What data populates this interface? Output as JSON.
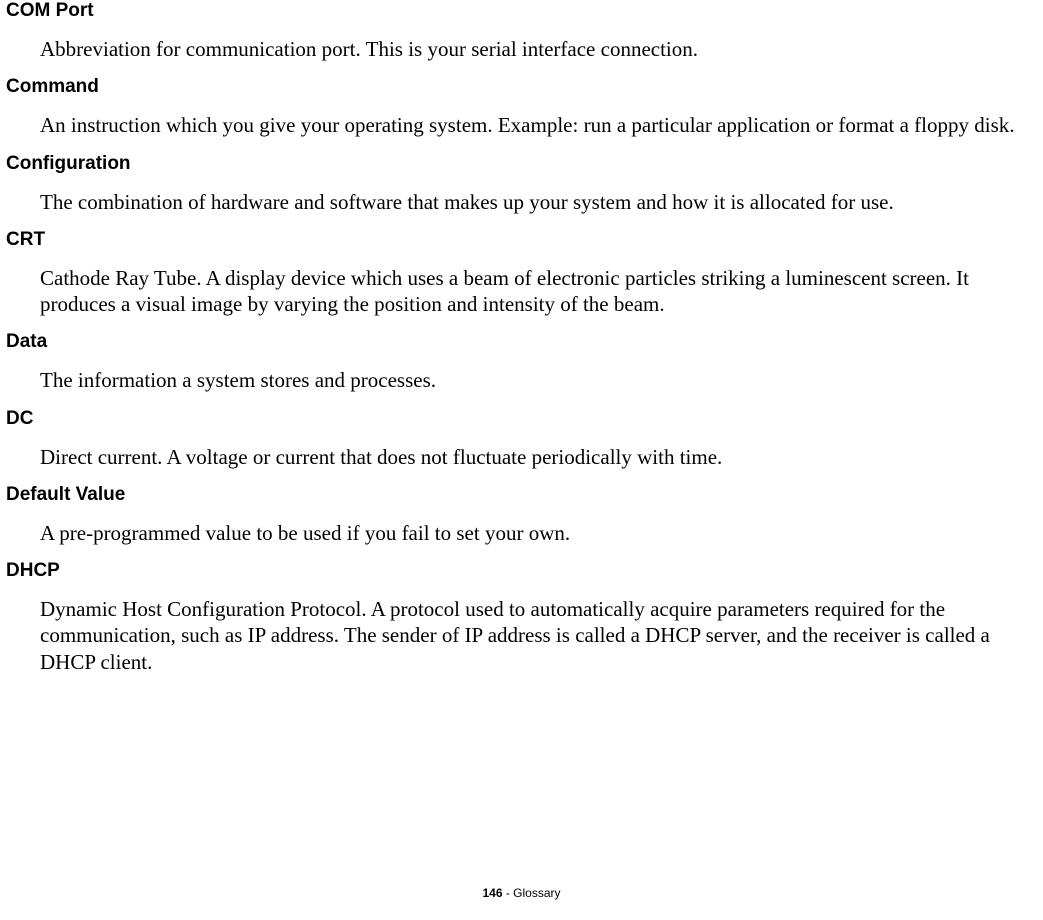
{
  "entries": [
    {
      "term": "COM Port",
      "definition": "Abbreviation for communication port. This is your serial interface connection."
    },
    {
      "term": "Command",
      "definition": "An instruction which you give your operating system. Example: run a particular application or format a floppy disk."
    },
    {
      "term": "Configuration",
      "definition": "The combination of hardware and software that makes up your system and how it is allocated for use."
    },
    {
      "term": "CRT",
      "definition": "Cathode Ray Tube. A display device which uses a beam of electronic particles striking a luminescent screen. It produces a visual image by varying the position and intensity of the beam."
    },
    {
      "term": "Data",
      "definition": "The information a system stores and processes."
    },
    {
      "term": "DC",
      "definition": "Direct current. A voltage or current that does not fluctuate periodically with time."
    },
    {
      "term": "Default Value",
      "definition": "A pre-programmed value to be used if you fail to set your own."
    },
    {
      "term": "DHCP",
      "definition": "Dynamic Host Configuration Protocol. A protocol used to automatically acquire parameters required for the communication, such as IP address. The sender of IP address is called a DHCP server, and the receiver is called a DHCP client."
    }
  ],
  "footer": {
    "page_number": "146",
    "separator": " - ",
    "section": "Glossary"
  }
}
